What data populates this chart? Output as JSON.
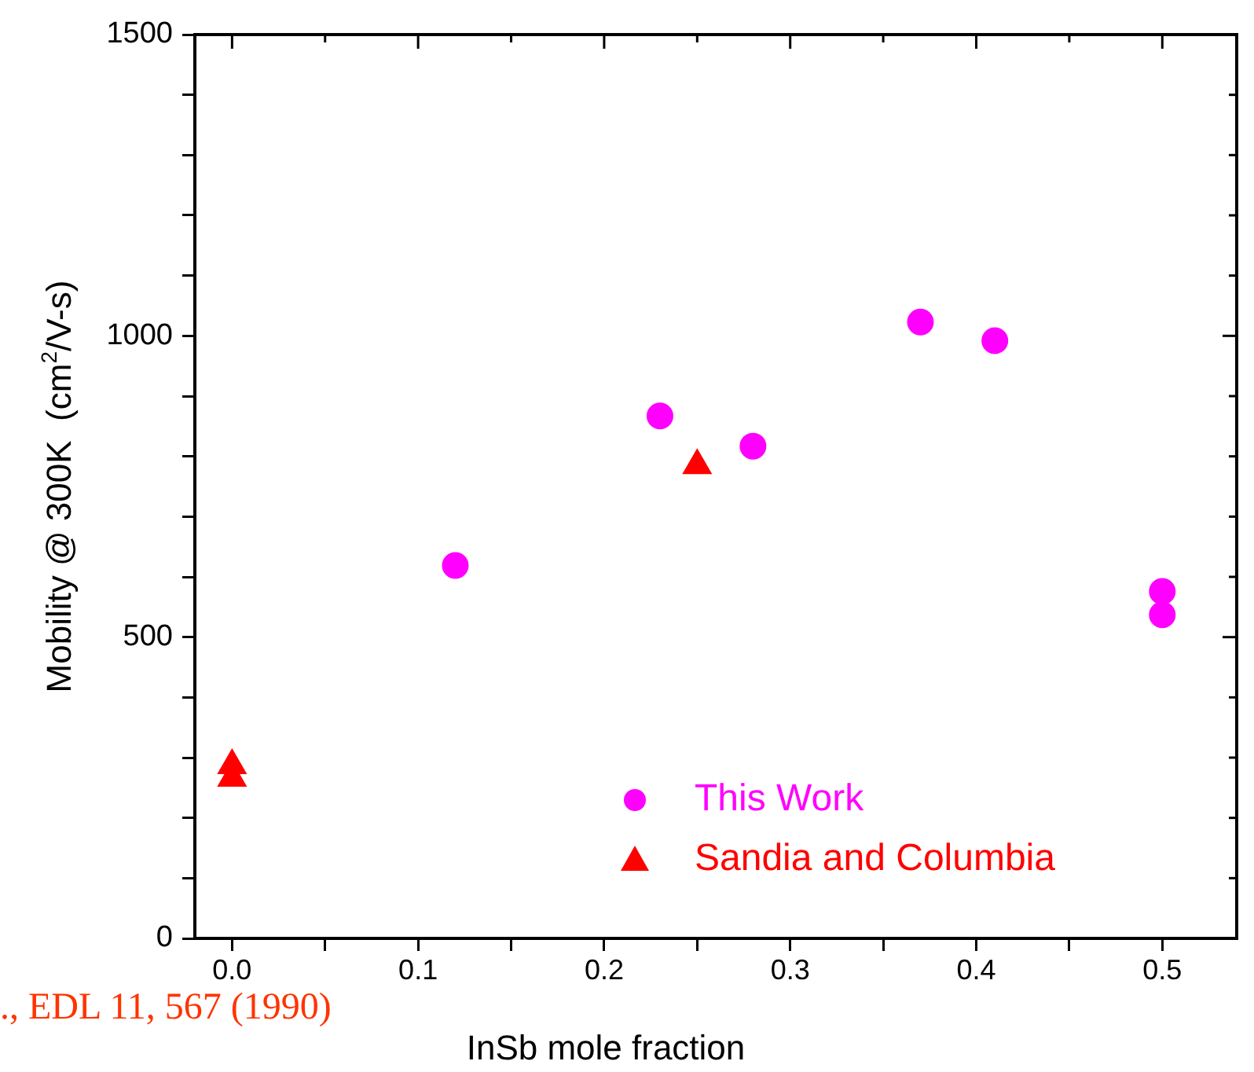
{
  "chart_data": {
    "type": "scatter",
    "xlabel": "InSb mole fraction",
    "ylabel": "Mobility @ 300K  (cm$^{2}$/V-s)",
    "annotations": [
      "., EDL 11, 567 (1990)"
    ],
    "xlim": [
      -0.02,
      0.54
    ],
    "xticks": [
      {
        "value": 0,
        "label": "0.0"
      },
      {
        "value": 0.05,
        "label": null
      },
      {
        "value": 0.1,
        "label": "0.1"
      },
      {
        "value": 0.15,
        "label": null
      },
      {
        "value": 0.2,
        "label": "0.2"
      },
      {
        "value": 0.25,
        "label": null
      },
      {
        "value": 0.3,
        "label": "0.3"
      },
      {
        "value": 0.35,
        "label": null
      },
      {
        "value": 0.4,
        "label": "0.4"
      },
      {
        "value": 0.45,
        "label": null
      },
      {
        "value": 0.5,
        "label": "0.5"
      }
    ],
    "ylim": [
      0,
      1500
    ],
    "yticks": [
      0,
      {
        "value": 100,
        "label": null
      },
      {
        "value": 200,
        "label": null
      },
      {
        "value": 300,
        "label": null
      },
      {
        "value": 400,
        "label": null
      },
      500,
      {
        "value": 600,
        "label": null
      },
      {
        "value": 700,
        "label": null
      },
      {
        "value": 800,
        "label": null
      },
      {
        "value": 900,
        "label": null
      },
      1000,
      {
        "value": 1100,
        "label": null
      },
      {
        "value": 1200,
        "label": null
      },
      {
        "value": 1300,
        "label": null
      },
      {
        "value": 1400,
        "label": null
      },
      1500
    ],
    "grid": false,
    "legend": "bottom",
    "series": [
      {
        "name": "This Work",
        "color": "#ff00ff",
        "marker": "circle",
        "x": [
          0.12,
          0.23,
          0.28,
          0.37,
          0.41,
          0.5,
          0.5
        ],
        "values": [
          619,
          867,
          817,
          1023,
          992,
          576,
          537
        ]
      },
      {
        "name": "Sandia and Columbia",
        "color": "#ff0000",
        "marker": "triangle",
        "x": [
          0,
          0,
          0.25
        ],
        "values": [
          287,
          266,
          785
        ]
      }
    ]
  }
}
